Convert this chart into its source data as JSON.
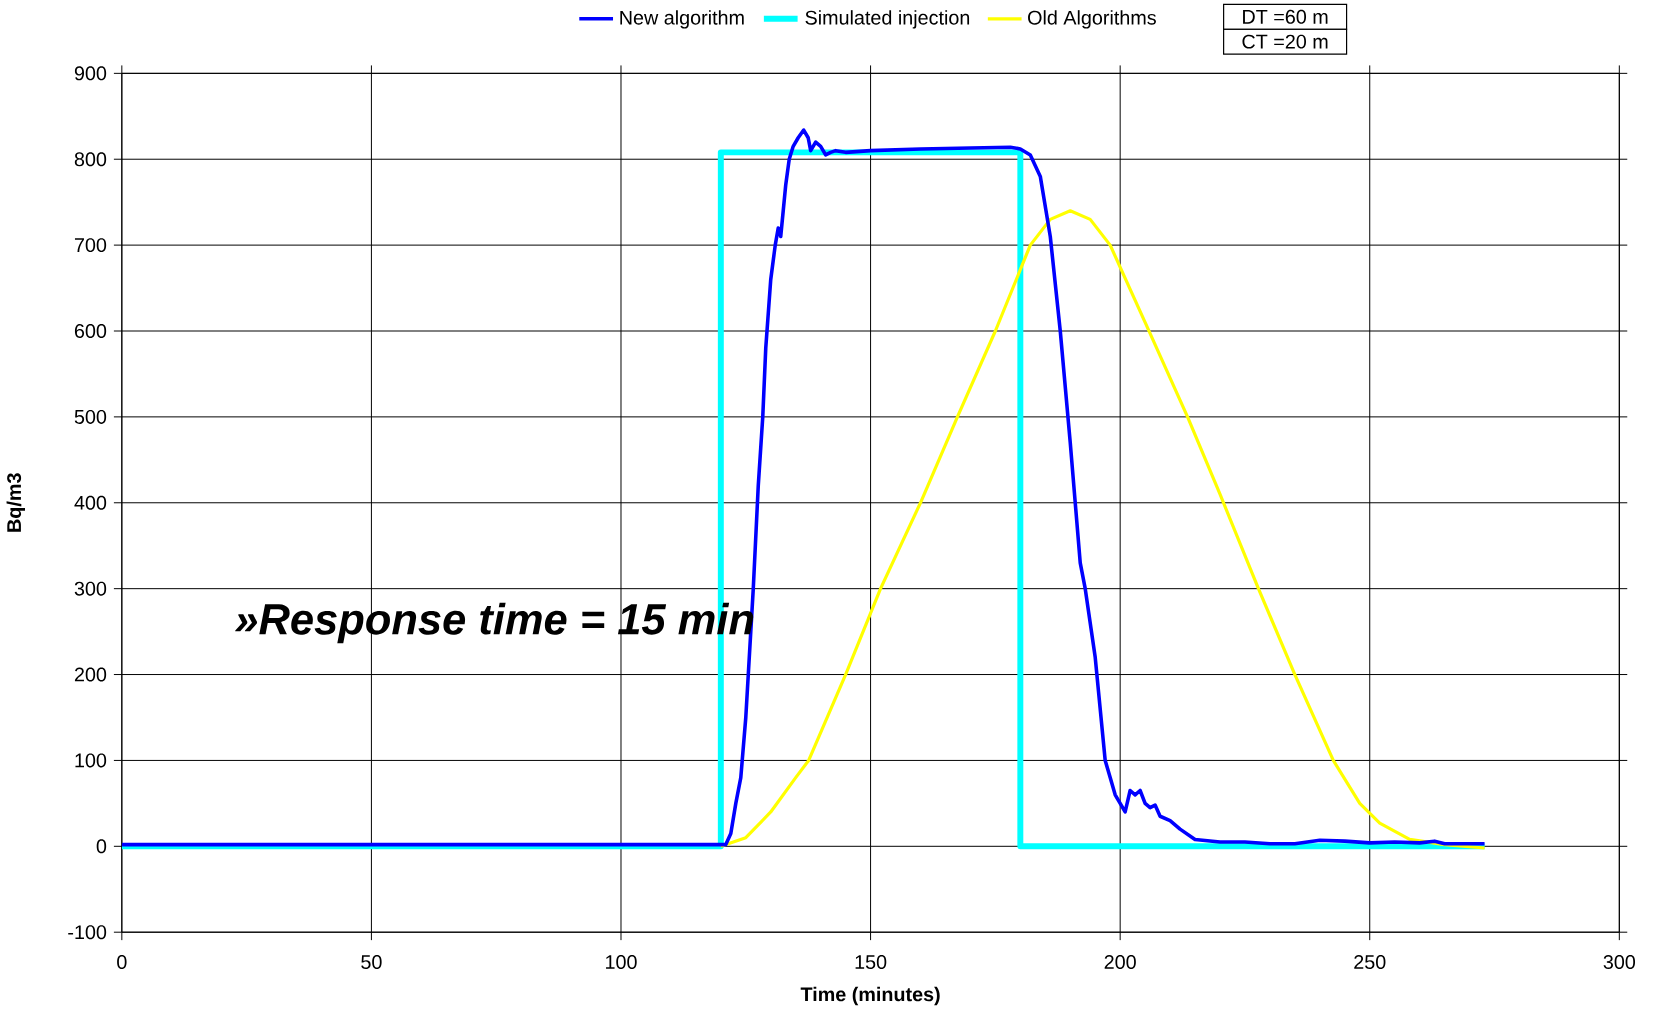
{
  "chart_data": {
    "type": "line",
    "xlabel": "Time (minutes)",
    "ylabel": "Bq/m3",
    "xlim": [
      0,
      300
    ],
    "xticks": [
      0,
      50,
      100,
      150,
      200,
      250,
      300
    ],
    "ylim": [
      -100,
      900
    ],
    "yticks": [
      -100,
      0,
      100,
      200,
      300,
      400,
      500,
      600,
      700,
      800,
      900
    ],
    "grid": true,
    "legend": "top",
    "annotations": [
      "»Response time = 15 min",
      "DT =60 m",
      "CT =20 m"
    ],
    "series": [
      {
        "name": "New algorithm",
        "color": "#0000ff",
        "x": [
          0,
          60,
          120,
          121,
          122,
          123,
          124,
          125,
          126,
          126.5,
          127.5,
          128.4,
          129,
          130,
          130.9,
          131.5,
          132,
          132.5,
          133,
          133.7,
          134.5,
          135.5,
          136.6,
          137.5,
          138,
          139,
          140,
          141,
          142,
          143,
          145,
          150,
          160,
          170,
          178,
          180,
          182,
          184,
          186,
          188,
          190,
          192,
          193,
          195,
          197,
          198,
          199,
          200,
          201,
          202,
          203,
          204,
          205,
          206,
          207,
          208,
          210,
          212,
          215,
          220,
          225,
          230,
          235,
          240,
          245,
          250,
          255,
          260,
          263,
          265,
          270,
          273
        ],
        "values": [
          2,
          2,
          2,
          2,
          15,
          50,
          80,
          150,
          250,
          300,
          420,
          500,
          580,
          660,
          700,
          720,
          710,
          740,
          770,
          800,
          815,
          825,
          834,
          825,
          810,
          820,
          815,
          805,
          808,
          810,
          808,
          810,
          812,
          813,
          814,
          812,
          805,
          780,
          710,
          600,
          470,
          330,
          300,
          220,
          100,
          80,
          60,
          50,
          40,
          65,
          60,
          65,
          50,
          45,
          48,
          35,
          30,
          20,
          8,
          5,
          5,
          3,
          3,
          7,
          6,
          4,
          5,
          4,
          6,
          3,
          3,
          3
        ]
      },
      {
        "name": "Simulated injection",
        "color": "#00ffff",
        "x": [
          0,
          120,
          120,
          180,
          180,
          273
        ],
        "values": [
          0,
          0,
          808,
          808,
          0,
          0
        ]
      },
      {
        "name": "Old Algorithms",
        "color": "#ffff00",
        "x": [
          120,
          125,
          130,
          135,
          137.6,
          145,
          152,
          160,
          167.4,
          175,
          182,
          186,
          190,
          194,
          198,
          205,
          213.5,
          220,
          227.7,
          235,
          242.7,
          248,
          252,
          258,
          265,
          273
        ],
        "values": [
          0,
          10,
          40,
          80,
          100,
          200,
          300,
          400,
          500,
          600,
          700,
          730,
          740,
          730,
          700,
          610,
          500,
          410,
          300,
          200,
          100,
          50,
          27,
          8,
          2,
          -2
        ]
      }
    ]
  }
}
